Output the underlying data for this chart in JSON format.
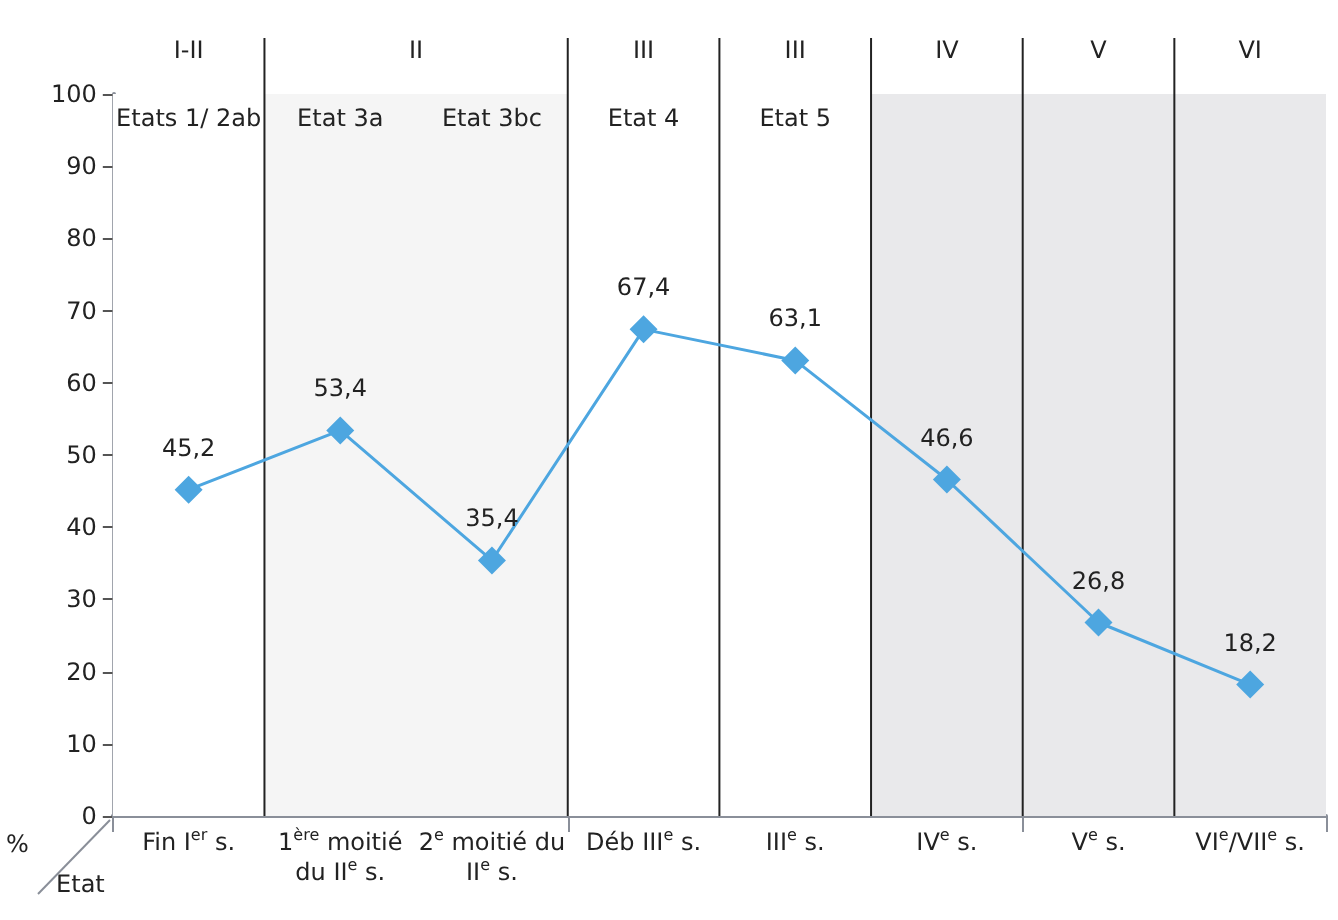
{
  "chart_data": {
    "type": "line",
    "categories": [
      "Fin I$^{er}$ s.",
      "1$^{ère}$ moitié du II$^{e}$ s.",
      "2$^{e}$ moitié du II$^{e}$ s.",
      "Déb III$^{e}$ s.",
      "III$^{e}$ s.",
      "IV$^{e}$ s.",
      "V$^{e}$ s.",
      "VI$^{e}$/VII$^{e}$ s."
    ],
    "series": [
      {
        "color": "#4da6e0",
        "values": [
          45.2,
          53.4,
          35.4,
          67.4,
          63.1,
          46.6,
          26.8,
          18.2
        ],
        "value_labels": [
          "45,2",
          "53,4",
          "35,4",
          "67,4",
          "63,1",
          "46,6",
          "26,8",
          "18,2"
        ]
      }
    ],
    "marker": "diamond",
    "line_style": "solid",
    "ylabel": "%",
    "xlabel": "Etat",
    "ylim": [
      0,
      100
    ],
    "yticks": [
      0,
      10,
      20,
      30,
      40,
      50,
      60,
      70,
      80,
      90,
      100
    ],
    "bands": [
      {
        "axis": "x",
        "from": "Fin I$^{er}$ s.",
        "to": "Fin I$^{er}$ s.",
        "label": "I-II",
        "color": "#ffffff"
      },
      {
        "axis": "x",
        "from": "1$^{ère}$ moitié du II$^{e}$ s.",
        "to": "2$^{e}$ moitié du II$^{e}$ s.",
        "label": "II",
        "color": "#f5f5f5"
      },
      {
        "axis": "x",
        "from": "Déb III$^{e}$ s.",
        "to": "Déb III$^{e}$ s.",
        "label": "III",
        "color": "#ffffff"
      },
      {
        "axis": "x",
        "from": "III$^{e}$ s.",
        "to": "III$^{e}$ s.",
        "label": "III",
        "color": "#ffffff"
      },
      {
        "axis": "x",
        "from": "IV$^{e}$ s.",
        "to": "IV$^{e}$ s.",
        "label": "IV",
        "color": "#e9e9eb"
      },
      {
        "axis": "x",
        "from": "V$^{e}$ s.",
        "to": "V$^{e}$ s.",
        "label": "V",
        "color": "#e9e9eb"
      },
      {
        "axis": "x",
        "from": "VI$^{e}$/VII$^{e}$ s.",
        "to": "VI$^{e}$/VII$^{e}$ s.",
        "label": "VI",
        "color": "#e9e9eb"
      }
    ],
    "annotations": [
      "Etats 1/ 2ab",
      "Etat 3a",
      "Etat 3bc",
      "Etat 4",
      "Etat 5"
    ]
  }
}
